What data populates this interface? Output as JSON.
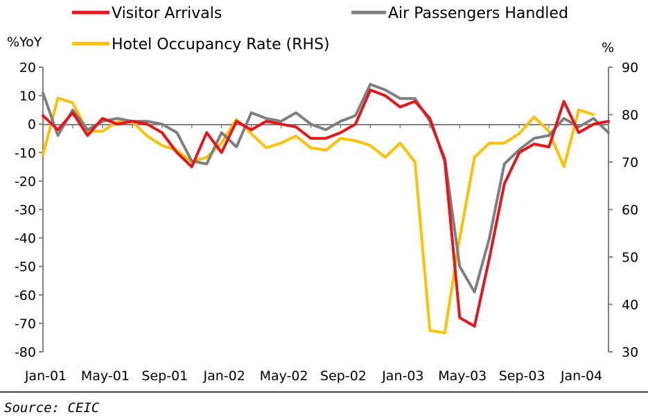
{
  "chart_data": {
    "type": "line",
    "x": [
      "Jan-01",
      "Feb-01",
      "Mar-01",
      "Apr-01",
      "May-01",
      "Jun-01",
      "Jul-01",
      "Aug-01",
      "Sep-01",
      "Oct-01",
      "Nov-01",
      "Dec-01",
      "Jan-02",
      "Feb-02",
      "Mar-02",
      "Apr-02",
      "May-02",
      "Jun-02",
      "Jul-02",
      "Aug-02",
      "Sep-02",
      "Oct-02",
      "Nov-02",
      "Dec-02",
      "Jan-03",
      "Feb-03",
      "Mar-03",
      "Apr-03",
      "May-03",
      "Jun-03",
      "Jul-03",
      "Aug-03",
      "Sep-03",
      "Oct-03",
      "Nov-03",
      "Dec-03",
      "Jan-04",
      "Feb-04",
      "Mar-04"
    ],
    "x_tick_labels": [
      "Jan-01",
      "May-01",
      "Sep-01",
      "Jan-02",
      "May-02",
      "Sep-02",
      "Jan-03",
      "May-03",
      "Sep-03",
      "Jan-04"
    ],
    "series": [
      {
        "name": "Visitor Arrivals",
        "axis": "left",
        "color": "#e8141c",
        "values": [
          3,
          -2,
          4,
          -4,
          2,
          0,
          1,
          0,
          -3,
          -10,
          -15,
          -3,
          -10,
          1,
          -2,
          1,
          0,
          -1,
          -5,
          -5,
          -3,
          0,
          12,
          10,
          6,
          8,
          2,
          -13,
          -68,
          -71,
          -47,
          -21,
          -10,
          -7,
          -8,
          8,
          -3,
          0,
          1
        ]
      },
      {
        "name": "Air Passengers Handled",
        "axis": "left",
        "color": "#7f7f7f",
        "values": [
          11,
          -4,
          5,
          -2,
          1,
          2,
          1,
          1,
          0,
          -3,
          -13,
          -14,
          -3,
          -8,
          4,
          2,
          1,
          4,
          0,
          -2,
          1,
          3,
          14,
          12,
          9,
          9,
          1,
          -12,
          -50,
          -59,
          -40,
          -14,
          -9,
          -5,
          -4,
          2,
          -1,
          2,
          -3
        ]
      },
      {
        "name": "Hotel Occupancy Rate (RHS)",
        "axis": "right",
        "color": "#ffc000",
        "values": [
          71.5,
          83.5,
          82.5,
          76.5,
          76.5,
          78.5,
          78.5,
          75.5,
          73.5,
          72.5,
          70,
          71,
          74,
          79,
          76,
          73,
          74,
          75.5,
          73,
          72.5,
          75,
          74.5,
          73.5,
          71,
          74,
          70,
          34.5,
          34,
          54,
          71,
          74,
          74,
          76,
          79.5,
          76.5,
          69,
          81,
          80,
          null
        ]
      }
    ],
    "y_left": {
      "label": "%YoY",
      "ylim": [
        -80,
        20
      ],
      "ticks": [
        20,
        10,
        0,
        -10,
        -20,
        -30,
        -40,
        -50,
        -60,
        -70,
        -80
      ]
    },
    "y_right": {
      "label": "%",
      "ylim": [
        30,
        90
      ],
      "ticks": [
        90,
        80,
        70,
        60,
        50,
        40,
        30
      ]
    },
    "legend_position": "top",
    "grid": false,
    "source": "Source: CEIC"
  }
}
